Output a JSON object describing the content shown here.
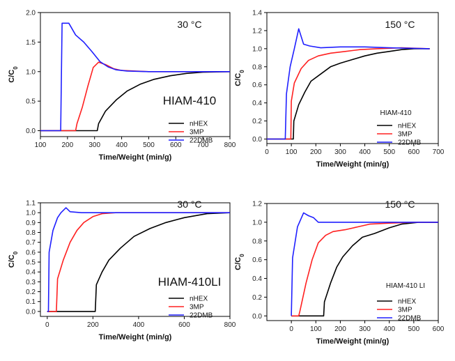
{
  "chart_data": [
    {
      "type": "line",
      "panel": "top-left",
      "temperature": "30 °C",
      "material": "HIAM-410",
      "xlabel": "Time/Weight (min/g)",
      "ylabel": "C/C0",
      "xlim": [
        100,
        800
      ],
      "ylim": [
        -0.1,
        2.0
      ],
      "xticks": [
        100,
        200,
        300,
        400,
        500,
        600,
        700,
        800
      ],
      "yticks": [
        0.0,
        0.5,
        1.0,
        1.5,
        2.0
      ],
      "xtick_labels": [
        "100",
        "200",
        "300",
        "400",
        "500",
        "600",
        "700",
        "800"
      ],
      "ytick_labels": [
        "0.0",
        "0.5",
        "1.0",
        "1.5",
        "2.0"
      ],
      "legend_position": "bottom-right",
      "series": [
        {
          "name": "nHEX",
          "color": "#000000",
          "points": [
            [
              100,
              0
            ],
            [
              310,
              0
            ],
            [
              315,
              0.12
            ],
            [
              340,
              0.33
            ],
            [
              380,
              0.52
            ],
            [
              420,
              0.67
            ],
            [
              470,
              0.79
            ],
            [
              520,
              0.87
            ],
            [
              580,
              0.93
            ],
            [
              640,
              0.97
            ],
            [
              700,
              0.99
            ],
            [
              800,
              1.0
            ]
          ]
        },
        {
          "name": "3MP",
          "color": "#ff2020",
          "points": [
            [
              100,
              0
            ],
            [
              230,
              0
            ],
            [
              235,
              0.12
            ],
            [
              255,
              0.4
            ],
            [
              275,
              0.75
            ],
            [
              295,
              1.07
            ],
            [
              315,
              1.16
            ],
            [
              340,
              1.12
            ],
            [
              370,
              1.05
            ],
            [
              400,
              1.02
            ],
            [
              500,
              1.0
            ],
            [
              800,
              1.0
            ]
          ]
        },
        {
          "name": "22DMB",
          "color": "#1f1fff",
          "points": [
            [
              100,
              0
            ],
            [
              175,
              0
            ],
            [
              180,
              1.82
            ],
            [
              205,
              1.82
            ],
            [
              230,
              1.62
            ],
            [
              260,
              1.5
            ],
            [
              290,
              1.34
            ],
            [
              320,
              1.17
            ],
            [
              350,
              1.08
            ],
            [
              380,
              1.03
            ],
            [
              420,
              1.01
            ],
            [
              500,
              1.0
            ],
            [
              800,
              1.0
            ]
          ]
        }
      ]
    },
    {
      "type": "line",
      "panel": "top-right",
      "temperature": "150 °C",
      "material": "HIAM-410",
      "xlabel": "Time/Weight (min/g)",
      "ylabel": "C/C0",
      "xlim": [
        0,
        700
      ],
      "ylim": [
        -0.05,
        1.4
      ],
      "xticks": [
        0,
        100,
        200,
        300,
        400,
        500,
        600,
        700
      ],
      "yticks": [
        0.0,
        0.2,
        0.4,
        0.6,
        0.8,
        1.0,
        1.2,
        1.4
      ],
      "xtick_labels": [
        "0",
        "100",
        "200",
        "300",
        "400",
        "500",
        "600",
        "700"
      ],
      "ytick_labels": [
        "0.0",
        "0.2",
        "0.4",
        "0.6",
        "0.8",
        "1.0",
        "1.2",
        "1.4"
      ],
      "legend_position": "bottom-right",
      "series": [
        {
          "name": "nHEX",
          "color": "#000000",
          "points": [
            [
              0,
              0
            ],
            [
              108,
              0
            ],
            [
              110,
              0.2
            ],
            [
              130,
              0.38
            ],
            [
              155,
              0.52
            ],
            [
              180,
              0.64
            ],
            [
              220,
              0.72
            ],
            [
              260,
              0.8
            ],
            [
              300,
              0.84
            ],
            [
              350,
              0.88
            ],
            [
              400,
              0.92
            ],
            [
              450,
              0.95
            ],
            [
              500,
              0.97
            ],
            [
              550,
              0.99
            ],
            [
              600,
              1.0
            ],
            [
              665,
              1.0
            ]
          ]
        },
        {
          "name": "3MP",
          "color": "#ff2020",
          "points": [
            [
              0,
              0
            ],
            [
              98,
              0
            ],
            [
              100,
              0.42
            ],
            [
              112,
              0.62
            ],
            [
              140,
              0.78
            ],
            [
              170,
              0.87
            ],
            [
              210,
              0.92
            ],
            [
              260,
              0.95
            ],
            [
              320,
              0.97
            ],
            [
              380,
              0.99
            ],
            [
              450,
              1.0
            ],
            [
              550,
              1.01
            ],
            [
              665,
              1.0
            ]
          ]
        },
        {
          "name": "22DMB",
          "color": "#1f1fff",
          "points": [
            [
              0,
              0
            ],
            [
              75,
              0
            ],
            [
              80,
              0.5
            ],
            [
              95,
              0.8
            ],
            [
              112,
              1.0
            ],
            [
              130,
              1.22
            ],
            [
              150,
              1.05
            ],
            [
              175,
              1.03
            ],
            [
              220,
              1.01
            ],
            [
              300,
              1.02
            ],
            [
              400,
              1.02
            ],
            [
              500,
              1.01
            ],
            [
              665,
              1.0
            ]
          ]
        }
      ]
    },
    {
      "type": "line",
      "panel": "bottom-left",
      "temperature": "30 °C",
      "material": "HIAM-410LI",
      "xlabel": "Time/Weight (min/g)",
      "ylabel": "C/C0",
      "xlim": [
        -30,
        800
      ],
      "ylim": [
        -0.05,
        1.1
      ],
      "xticks": [
        0,
        200,
        400,
        600,
        800
      ],
      "yticks": [
        0.0,
        0.1,
        0.2,
        0.3,
        0.4,
        0.5,
        0.6,
        0.7,
        0.8,
        0.9,
        1.0,
        1.1
      ],
      "xtick_labels": [
        "0",
        "200",
        "400",
        "600",
        "800"
      ],
      "ytick_labels": [
        "0.0",
        "0.1",
        "0.2",
        "0.3",
        "0.4",
        "0.5",
        "0.6",
        "0.7",
        "0.8",
        "0.9",
        "1.0",
        "1.1"
      ],
      "legend_position": "bottom-right",
      "series": [
        {
          "name": "nHEX",
          "color": "#000000",
          "points": [
            [
              0,
              0
            ],
            [
              210,
              0
            ],
            [
              215,
              0.27
            ],
            [
              240,
              0.4
            ],
            [
              270,
              0.52
            ],
            [
              320,
              0.64
            ],
            [
              380,
              0.76
            ],
            [
              450,
              0.84
            ],
            [
              520,
              0.9
            ],
            [
              600,
              0.95
            ],
            [
              700,
              0.99
            ],
            [
              800,
              1.0
            ]
          ]
        },
        {
          "name": "3MP",
          "color": "#ff2020",
          "points": [
            [
              0,
              0
            ],
            [
              40,
              0
            ],
            [
              45,
              0.33
            ],
            [
              70,
              0.52
            ],
            [
              100,
              0.7
            ],
            [
              130,
              0.82
            ],
            [
              160,
              0.9
            ],
            [
              200,
              0.96
            ],
            [
              240,
              0.99
            ],
            [
              300,
              1.0
            ],
            [
              800,
              1.0
            ]
          ]
        },
        {
          "name": "22DMB",
          "color": "#1f1fff",
          "points": [
            [
              0,
              0
            ],
            [
              5,
              0
            ],
            [
              8,
              0.6
            ],
            [
              25,
              0.82
            ],
            [
              45,
              0.95
            ],
            [
              60,
              1.0
            ],
            [
              82,
              1.05
            ],
            [
              100,
              1.01
            ],
            [
              150,
              1.0
            ],
            [
              800,
              1.0
            ]
          ]
        }
      ]
    },
    {
      "type": "line",
      "panel": "bottom-right",
      "temperature": "150 °C",
      "material": "HIAM-410 LI",
      "xlabel": "Time/Weight (min/g)",
      "ylabel": "C/C0",
      "xlim": [
        -100,
        600
      ],
      "ylim": [
        -0.05,
        1.2
      ],
      "xticks": [
        0,
        100,
        200,
        300,
        400,
        500,
        600
      ],
      "yticks": [
        0.0,
        0.2,
        0.4,
        0.6,
        0.8,
        1.0,
        1.2
      ],
      "xtick_labels": [
        "0",
        "100",
        "200",
        "300",
        "400",
        "500",
        "600"
      ],
      "ytick_labels": [
        "0.0",
        "0.2",
        "0.4",
        "0.6",
        "0.8",
        "1.0",
        "1.2"
      ],
      "legend_position": "bottom-right",
      "series": [
        {
          "name": "nHEX",
          "color": "#000000",
          "points": [
            [
              0,
              0
            ],
            [
              132,
              0
            ],
            [
              135,
              0.15
            ],
            [
              160,
              0.35
            ],
            [
              185,
              0.52
            ],
            [
              210,
              0.63
            ],
            [
              250,
              0.75
            ],
            [
              290,
              0.84
            ],
            [
              340,
              0.88
            ],
            [
              400,
              0.94
            ],
            [
              450,
              0.98
            ],
            [
              520,
              1.0
            ],
            [
              600,
              1.0
            ]
          ]
        },
        {
          "name": "3MP",
          "color": "#ff2020",
          "points": [
            [
              0,
              0
            ],
            [
              30,
              0
            ],
            [
              35,
              0.05
            ],
            [
              60,
              0.35
            ],
            [
              85,
              0.6
            ],
            [
              110,
              0.78
            ],
            [
              140,
              0.86
            ],
            [
              170,
              0.9
            ],
            [
              220,
              0.92
            ],
            [
              270,
              0.95
            ],
            [
              320,
              0.98
            ],
            [
              400,
              0.99
            ],
            [
              500,
              1.0
            ],
            [
              600,
              1.0
            ]
          ]
        },
        {
          "name": "22DMB",
          "color": "#1f1fff",
          "points": [
            [
              0,
              0
            ],
            [
              5,
              0.62
            ],
            [
              25,
              0.95
            ],
            [
              50,
              1.1
            ],
            [
              70,
              1.07
            ],
            [
              90,
              1.05
            ],
            [
              110,
              1.0
            ],
            [
              150,
              1.0
            ],
            [
              300,
              1.0
            ],
            [
              600,
              1.0
            ]
          ]
        }
      ]
    }
  ]
}
